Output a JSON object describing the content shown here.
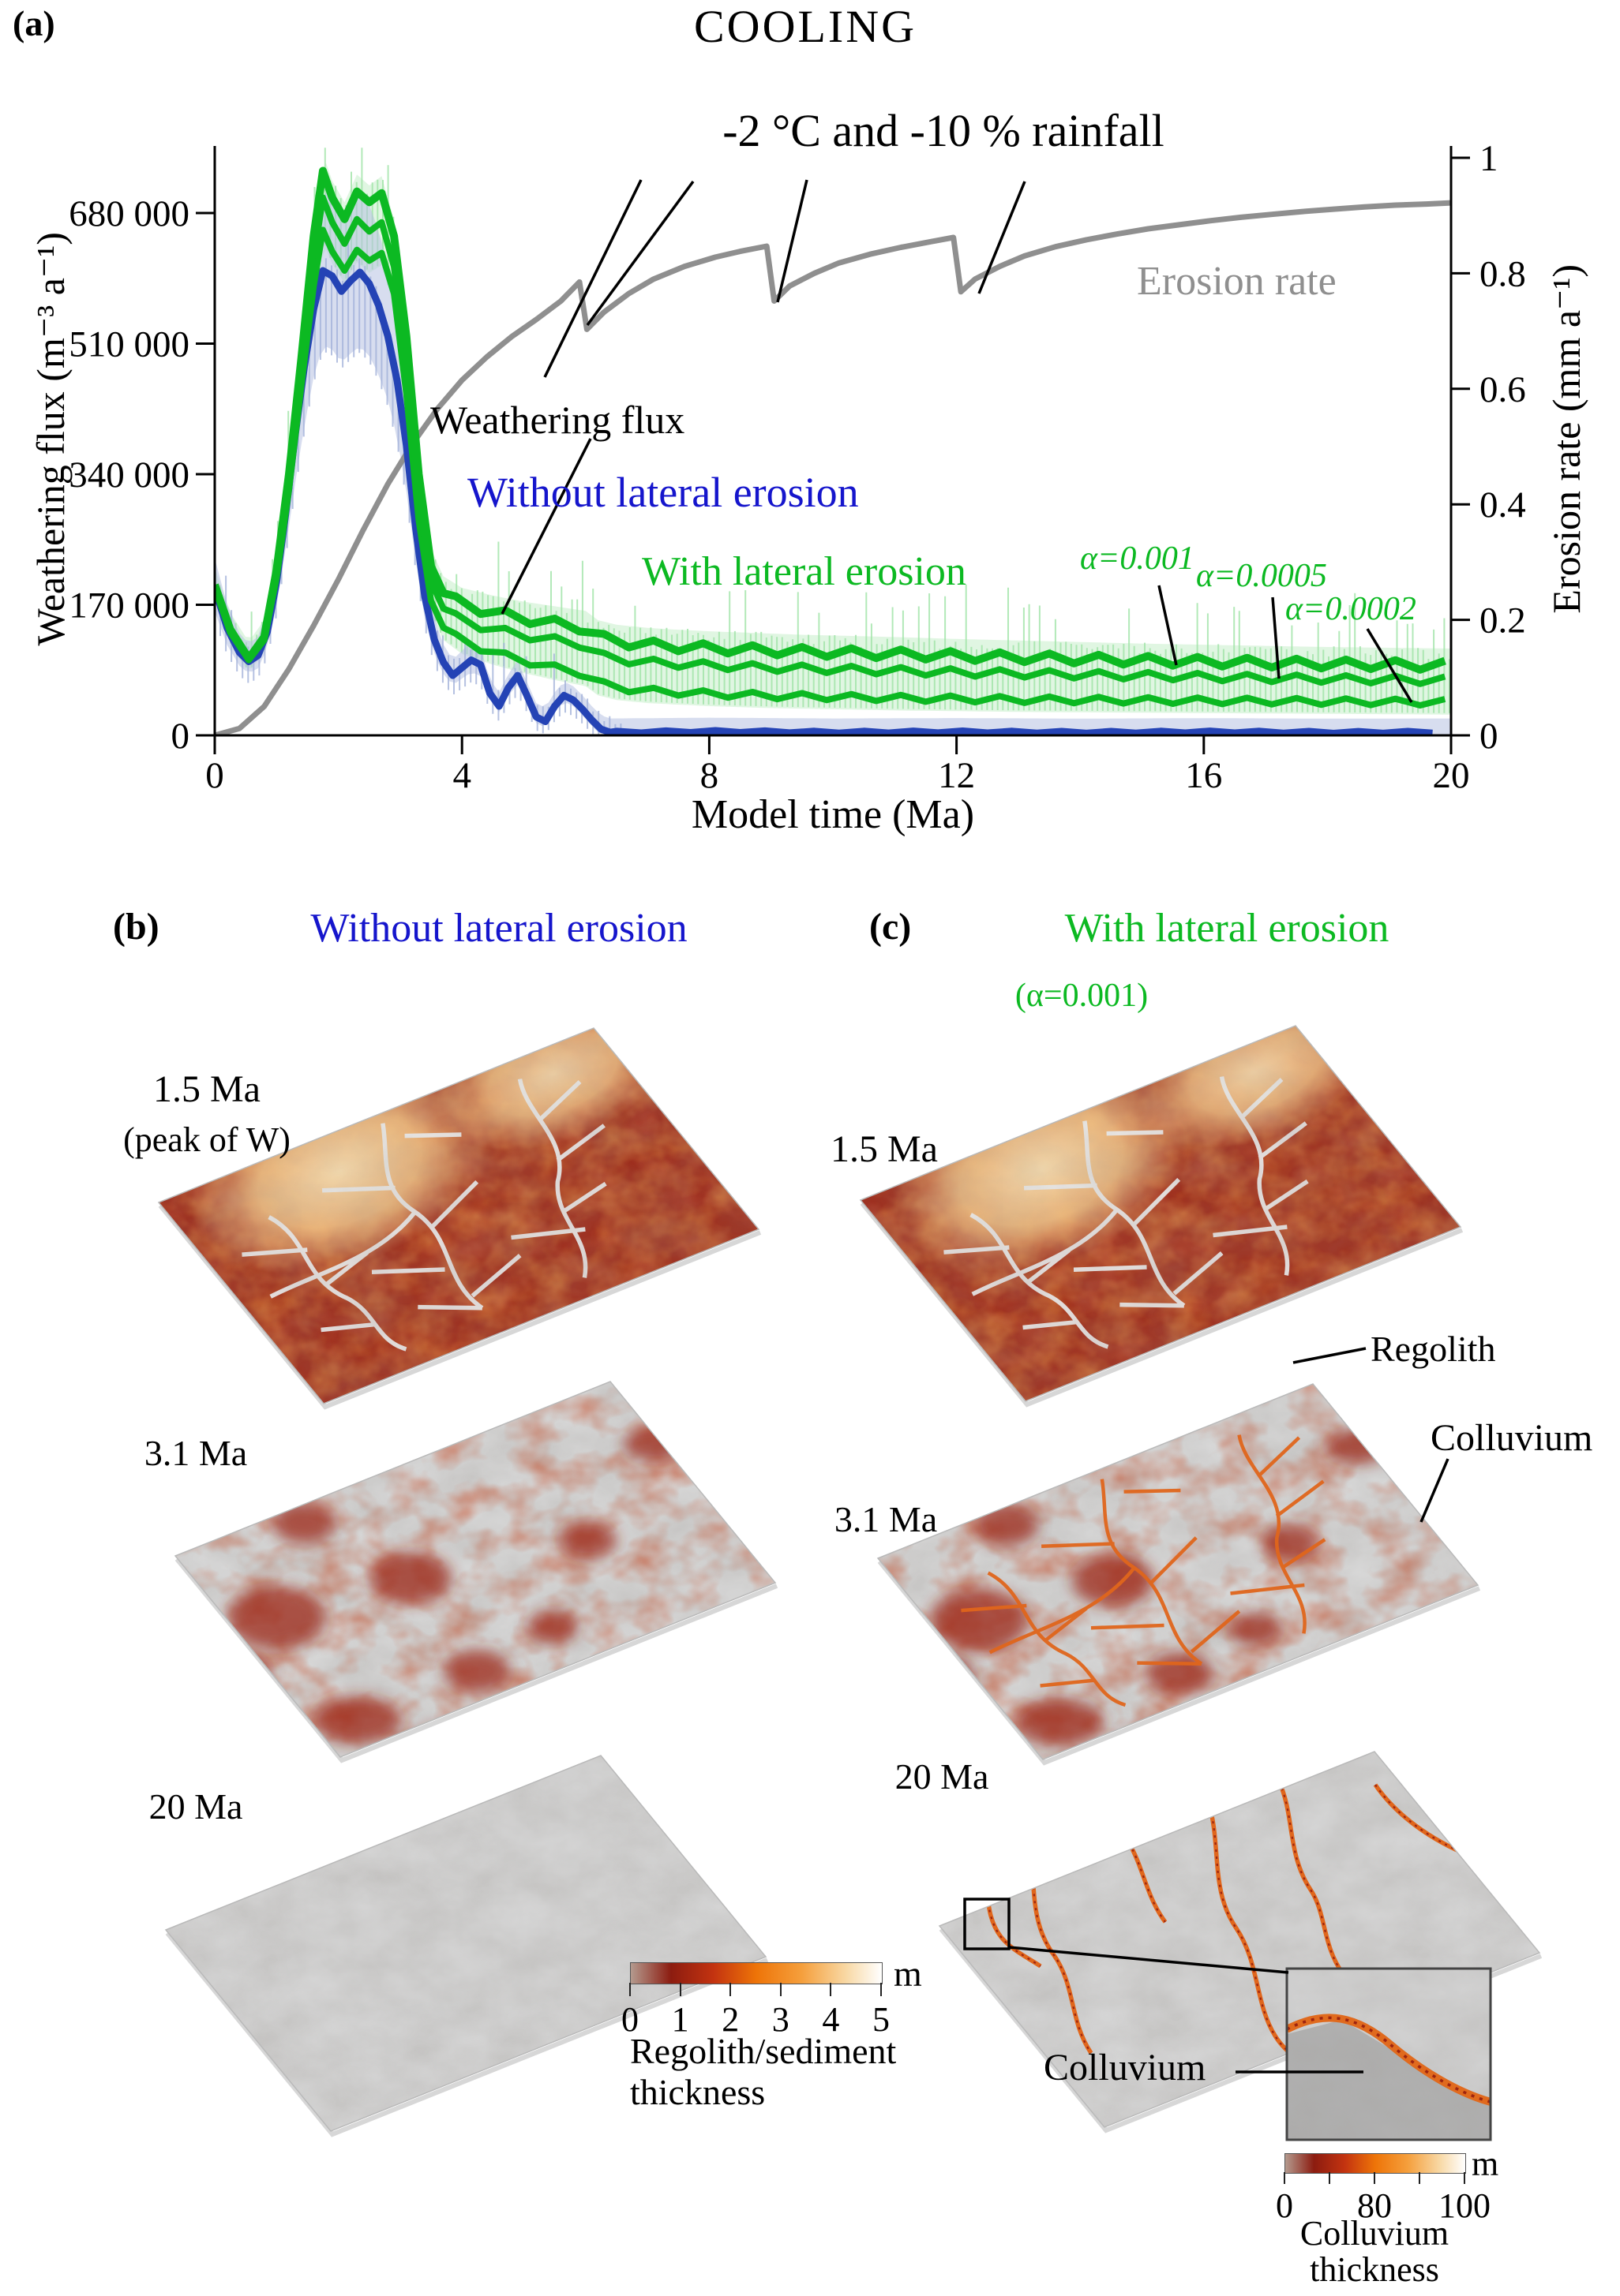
{
  "labels": {
    "a_tag": "(a)",
    "title": "COOLING",
    "climate": "-2 °C and -10 % rainfall",
    "erosion_rate": "Erosion rate",
    "weathering_flux": "Weathering  flux",
    "without": "Without lateral erosion",
    "with": "With lateral erosion",
    "alpha1": "α=0.001",
    "alpha2": "α=0.0005",
    "alpha3": "α=0.0002",
    "x_title": "Model time (Ma)",
    "yl_title": "Weathering flux (m⁻³ a⁻¹)",
    "yr_title": "Erosion rate (mm a⁻¹)"
  },
  "panel_b": {
    "tag": "(b)",
    "header": "Without lateral erosion",
    "t1": "1.5 Ma",
    "t1_sub": "(peak of W)",
    "t2": "3.1 Ma",
    "t3": "20 Ma"
  },
  "panel_c": {
    "tag": "(c)",
    "header": "With lateral erosion",
    "alpha_note": "(α=0.001)",
    "t1": "1.5 Ma",
    "t2": "3.1 Ma",
    "t3": "20 Ma",
    "regolith": "Regolith",
    "colluvium": "Colluvium",
    "colluvium_zoom": "Colluvium"
  },
  "cb_regolith": {
    "ticks": [
      "0",
      "1",
      "2",
      "3",
      "4",
      "5"
    ],
    "unit": "m",
    "caption1": "Regolith/sediment",
    "caption2": "thickness"
  },
  "cb_colluvium": {
    "tick_labels": [
      "0",
      "80",
      "100"
    ],
    "n_ticks": 5,
    "unit": "m",
    "caption1": "Colluvium",
    "caption2": "thickness"
  },
  "colors": {
    "green": "#0cb922",
    "light_green_band": "#c2eec6",
    "light_green_spike": "#9fe4a6",
    "blue": "#2443b5",
    "light_blue_band": "#b7c1e2",
    "light_blue_spike": "#a3b1da",
    "gray": "#8f8f8f",
    "header_blue": "#1515cc",
    "header_green": "#0cb922",
    "terrain_red": "#9c2a1c",
    "terrain_gray": "#d9d9d9",
    "channel_white": "#e8e8e8",
    "channel_orange": "#e0661c",
    "colorbar": [
      "#b49a8e",
      "#8c1c10",
      "#c33310",
      "#ee7408",
      "#f59f3c",
      "#f8d9a6",
      "#ffffff"
    ]
  },
  "chart_data": {
    "type": "line",
    "title": "COOLING",
    "xlabel": "Model time (Ma)",
    "ylabel_left": "Weathering flux (m⁻³ a⁻¹)",
    "ylabel_right": "Erosion rate (mm a⁻¹)",
    "xlim": [
      0,
      20
    ],
    "ylim_left": [
      0,
      767000
    ],
    "ylim_right": [
      0,
      1.02
    ],
    "x_ticks": [
      0,
      4,
      8,
      12,
      16,
      20
    ],
    "yl_ticks": [
      0,
      170000,
      340000,
      510000,
      680000
    ],
    "yl_tick_labels": [
      "0",
      "170 000",
      "340 000",
      "510 000",
      "680 000"
    ],
    "yr_ticks": [
      0,
      0.2,
      0.4,
      0.6,
      0.8,
      1
    ],
    "yr_tick_labels": [
      "0",
      "0.2",
      "0.4",
      "0.6",
      "0.8",
      "1"
    ],
    "grid": false,
    "climate_event_times_Ma": [
      6,
      9,
      12
    ],
    "series": [
      {
        "name": "Erosion rate",
        "axis": "right",
        "color": "#8f8f8f",
        "units": "mm a-1",
        "points": [
          [
            0,
            0
          ],
          [
            0.4,
            0.012
          ],
          [
            0.8,
            0.05
          ],
          [
            1.2,
            0.115
          ],
          [
            1.6,
            0.19
          ],
          [
            2.0,
            0.27
          ],
          [
            2.4,
            0.355
          ],
          [
            2.8,
            0.435
          ],
          [
            3.2,
            0.505
          ],
          [
            3.6,
            0.565
          ],
          [
            4.0,
            0.615
          ],
          [
            4.4,
            0.655
          ],
          [
            4.8,
            0.69
          ],
          [
            5.2,
            0.72
          ],
          [
            5.6,
            0.752
          ],
          [
            5.9,
            0.785
          ],
          [
            6.02,
            0.703
          ],
          [
            6.3,
            0.733
          ],
          [
            6.7,
            0.765
          ],
          [
            7.1,
            0.79
          ],
          [
            7.6,
            0.812
          ],
          [
            8.1,
            0.828
          ],
          [
            8.5,
            0.838
          ],
          [
            8.93,
            0.847
          ],
          [
            9.05,
            0.752
          ],
          [
            9.3,
            0.778
          ],
          [
            9.7,
            0.8
          ],
          [
            10.1,
            0.818
          ],
          [
            10.6,
            0.833
          ],
          [
            11.1,
            0.845
          ],
          [
            11.6,
            0.855
          ],
          [
            11.95,
            0.862
          ],
          [
            12.07,
            0.768
          ],
          [
            12.3,
            0.79
          ],
          [
            12.7,
            0.812
          ],
          [
            13.1,
            0.83
          ],
          [
            13.6,
            0.846
          ],
          [
            14.1,
            0.858
          ],
          [
            14.6,
            0.868
          ],
          [
            15.1,
            0.877
          ],
          [
            15.6,
            0.884
          ],
          [
            16.1,
            0.891
          ],
          [
            16.6,
            0.897
          ],
          [
            17.1,
            0.902
          ],
          [
            17.6,
            0.907
          ],
          [
            18.1,
            0.911
          ],
          [
            18.6,
            0.915
          ],
          [
            19.1,
            0.918
          ],
          [
            19.6,
            0.92
          ],
          [
            20,
            0.922
          ]
        ]
      },
      {
        "name": "Weathering flux, without lateral erosion",
        "axis": "left",
        "color": "#2443b5",
        "units": "m3 a-1",
        "wiggle_from": 6.5,
        "wiggle_amp": 1200,
        "points": [
          [
            0,
            192000
          ],
          [
            0.2,
            140000
          ],
          [
            0.4,
            108000
          ],
          [
            0.55,
            96000
          ],
          [
            0.7,
            104000
          ],
          [
            0.85,
            135000
          ],
          [
            1.0,
            200000
          ],
          [
            1.15,
            290000
          ],
          [
            1.3,
            390000
          ],
          [
            1.45,
            480000
          ],
          [
            1.6,
            555000
          ],
          [
            1.75,
            605000
          ],
          [
            1.9,
            598000
          ],
          [
            2.05,
            578000
          ],
          [
            2.2,
            592000
          ],
          [
            2.35,
            603000
          ],
          [
            2.5,
            588000
          ],
          [
            2.65,
            560000
          ],
          [
            2.8,
            520000
          ],
          [
            2.95,
            462000
          ],
          [
            3.1,
            378000
          ],
          [
            3.25,
            270000
          ],
          [
            3.4,
            180000
          ],
          [
            3.55,
            125000
          ],
          [
            3.7,
            95000
          ],
          [
            3.85,
            78000
          ],
          [
            4.0,
            88000
          ],
          [
            4.15,
            98000
          ],
          [
            4.3,
            92000
          ],
          [
            4.45,
            55000
          ],
          [
            4.6,
            38000
          ],
          [
            4.75,
            62000
          ],
          [
            4.9,
            78000
          ],
          [
            5.05,
            52000
          ],
          [
            5.2,
            24000
          ],
          [
            5.35,
            18000
          ],
          [
            5.5,
            38000
          ],
          [
            5.65,
            52000
          ],
          [
            5.8,
            46000
          ],
          [
            5.95,
            34000
          ],
          [
            6.1,
            20000
          ],
          [
            6.25,
            8000
          ],
          [
            6.4,
            4000
          ],
          [
            8,
            5000
          ],
          [
            10,
            4000
          ],
          [
            12,
            4500
          ],
          [
            14,
            3800
          ],
          [
            16,
            4400
          ],
          [
            18,
            3800
          ],
          [
            20,
            4000
          ]
        ]
      },
      {
        "name": "Weathering flux, with lateral erosion α=0.001",
        "axis": "left",
        "color": "#0cb922",
        "units": "m3 a-1",
        "wiggle_from": 3.9,
        "wiggle_amp": 6000,
        "points": [
          [
            0,
            196000
          ],
          [
            0.25,
            138000
          ],
          [
            0.55,
            100000
          ],
          [
            0.8,
            128000
          ],
          [
            1.0,
            215000
          ],
          [
            1.2,
            340000
          ],
          [
            1.4,
            490000
          ],
          [
            1.6,
            650000
          ],
          [
            1.75,
            735000
          ],
          [
            1.9,
            700000
          ],
          [
            2.1,
            672000
          ],
          [
            2.3,
            708000
          ],
          [
            2.5,
            694000
          ],
          [
            2.7,
            706000
          ],
          [
            2.9,
            650000
          ],
          [
            3.1,
            520000
          ],
          [
            3.3,
            340000
          ],
          [
            3.5,
            220000
          ],
          [
            3.7,
            185000
          ],
          [
            4.0,
            170000
          ],
          [
            4.5,
            160000
          ],
          [
            5.0,
            152000
          ],
          [
            5.5,
            146000
          ],
          [
            6.0,
            140000
          ],
          [
            6.2,
            128000
          ],
          [
            6.5,
            122000
          ],
          [
            7.0,
            118000
          ],
          [
            7.5,
            115500
          ],
          [
            8.0,
            113500
          ],
          [
            8.5,
            112000
          ],
          [
            9.0,
            110500
          ],
          [
            9.5,
            109000
          ],
          [
            10,
            108000
          ],
          [
            11,
            106000
          ],
          [
            12,
            103500
          ],
          [
            13,
            101500
          ],
          [
            14,
            99500
          ],
          [
            15,
            97500
          ],
          [
            16,
            96000
          ],
          [
            17,
            94500
          ],
          [
            18,
            93000
          ],
          [
            19,
            92000
          ],
          [
            20,
            91000
          ]
        ]
      },
      {
        "name": "Weathering flux, with lateral erosion α=0.0005",
        "axis": "left",
        "color": "#0cb922",
        "units": "m3 a-1",
        "wiggle_from": 3.9,
        "wiggle_amp": 5000,
        "points": [
          [
            0,
            194000
          ],
          [
            0.25,
            136000
          ],
          [
            0.55,
            99000
          ],
          [
            0.8,
            126000
          ],
          [
            1.0,
            210000
          ],
          [
            1.2,
            330000
          ],
          [
            1.4,
            475000
          ],
          [
            1.6,
            620000
          ],
          [
            1.75,
            700000
          ],
          [
            1.9,
            668000
          ],
          [
            2.1,
            640000
          ],
          [
            2.3,
            672000
          ],
          [
            2.5,
            656000
          ],
          [
            2.7,
            668000
          ],
          [
            2.9,
            610000
          ],
          [
            3.1,
            480000
          ],
          [
            3.3,
            310000
          ],
          [
            3.5,
            200000
          ],
          [
            3.7,
            165000
          ],
          [
            4.0,
            148000
          ],
          [
            4.5,
            138000
          ],
          [
            5.0,
            130000
          ],
          [
            5.5,
            124000
          ],
          [
            6.0,
            118000
          ],
          [
            6.2,
            104000
          ],
          [
            6.5,
            99000
          ],
          [
            7.0,
            95000
          ],
          [
            8.0,
            91000
          ],
          [
            9.0,
            88000
          ],
          [
            10,
            86000
          ],
          [
            11,
            84000
          ],
          [
            12,
            82000
          ],
          [
            13,
            80500
          ],
          [
            14,
            79000
          ],
          [
            15,
            77500
          ],
          [
            16,
            76000
          ],
          [
            17,
            74500
          ],
          [
            18,
            73500
          ],
          [
            19,
            72500
          ],
          [
            20,
            71500
          ]
        ]
      },
      {
        "name": "Weathering flux, with lateral erosion α=0.0002",
        "axis": "left",
        "color": "#0cb922",
        "units": "m3 a-1",
        "wiggle_from": 3.9,
        "wiggle_amp": 4200,
        "points": [
          [
            0,
            192000
          ],
          [
            0.25,
            134000
          ],
          [
            0.55,
            98000
          ],
          [
            0.8,
            124000
          ],
          [
            1.0,
            205000
          ],
          [
            1.2,
            320000
          ],
          [
            1.4,
            455000
          ],
          [
            1.6,
            585000
          ],
          [
            1.75,
            658000
          ],
          [
            1.9,
            630000
          ],
          [
            2.1,
            605000
          ],
          [
            2.3,
            632000
          ],
          [
            2.5,
            618000
          ],
          [
            2.7,
            628000
          ],
          [
            2.9,
            575000
          ],
          [
            3.1,
            445000
          ],
          [
            3.3,
            280000
          ],
          [
            3.5,
            175000
          ],
          [
            3.7,
            140000
          ],
          [
            4.0,
            122000
          ],
          [
            4.5,
            108000
          ],
          [
            5.0,
            97000
          ],
          [
            5.5,
            88000
          ],
          [
            6.0,
            80000
          ],
          [
            6.2,
            68000
          ],
          [
            6.5,
            62000
          ],
          [
            7.0,
            58000
          ],
          [
            8.0,
            54000
          ],
          [
            9.0,
            51500
          ],
          [
            10,
            50000
          ],
          [
            11,
            48500
          ],
          [
            12,
            47500
          ],
          [
            13,
            46500
          ],
          [
            14,
            46000
          ],
          [
            15,
            45500
          ],
          [
            16,
            45000
          ],
          [
            17,
            44500
          ],
          [
            18,
            44000
          ],
          [
            19,
            43500
          ],
          [
            20,
            43000
          ]
        ]
      }
    ]
  }
}
